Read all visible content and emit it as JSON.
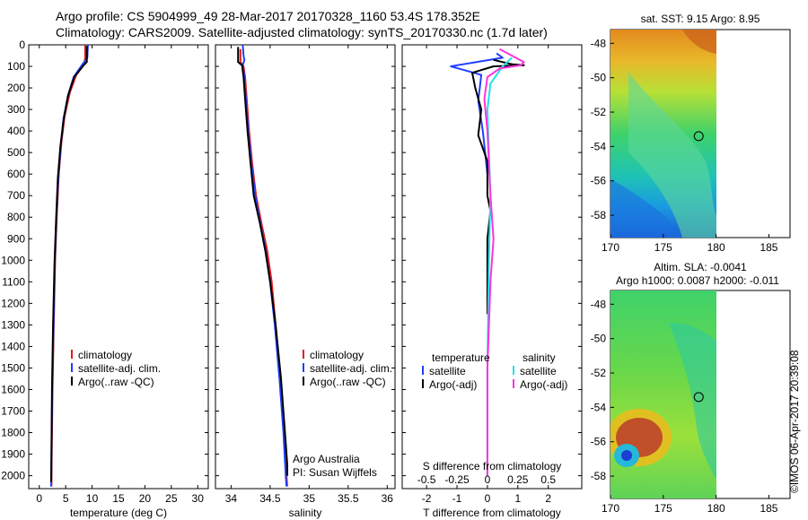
{
  "header": {
    "title_line1": "Argo profile: CS 5904999_49 28-Mar-2017 20170328_1160 53.4S 178.352E",
    "title_line2": "Climatology: CARS2009. Satellite-adjusted climatology: synTS_20170330.nc (1.7d later)"
  },
  "colors": {
    "climatology": "#e31a1c",
    "satellite": "#1f3fff",
    "argo": "#000000",
    "sal_satellite": "#22e0e8",
    "sal_argo": "#ff33dd"
  },
  "chart_data": [
    {
      "type": "line",
      "xlabel": "temperature (deg C)",
      "xlim": [
        -2,
        32
      ],
      "xticks": [
        0,
        5,
        10,
        15,
        20,
        25,
        30
      ],
      "ylim": [
        2060,
        0
      ],
      "yticks": [
        0,
        100,
        200,
        300,
        400,
        500,
        600,
        700,
        800,
        900,
        1000,
        1100,
        1200,
        1300,
        1400,
        1500,
        1600,
        1700,
        1800,
        1900,
        2000
      ],
      "legend": {
        "placement": "lower-center",
        "entries": [
          "climatology",
          "satellite-adj. clim.",
          "Argo(..raw -QC)"
        ]
      },
      "series": [
        {
          "name": "climatology",
          "color": "#e31a1c",
          "points": [
            [
              8.7,
              0
            ],
            [
              8.7,
              60
            ],
            [
              8.5,
              90
            ],
            [
              7.0,
              140
            ],
            [
              5.8,
              220
            ],
            [
              4.8,
              330
            ],
            [
              4.2,
              450
            ],
            [
              3.7,
              600
            ],
            [
              3.3,
              800
            ],
            [
              3.0,
              1000
            ],
            [
              2.75,
              1300
            ],
            [
              2.5,
              1600
            ],
            [
              2.35,
              1900
            ],
            [
              2.3,
              2050
            ]
          ]
        },
        {
          "name": "satellite-adj. clim.",
          "color": "#1f3fff",
          "points": [
            [
              9.2,
              0
            ],
            [
              9.1,
              60
            ],
            [
              8.2,
              90
            ],
            [
              6.5,
              150
            ],
            [
              5.5,
              230
            ],
            [
              4.6,
              340
            ],
            [
              4.1,
              460
            ],
            [
              3.6,
              620
            ],
            [
              3.2,
              820
            ],
            [
              2.95,
              1000
            ],
            [
              2.7,
              1300
            ],
            [
              2.45,
              1600
            ],
            [
              2.3,
              1900
            ],
            [
              2.25,
              2050
            ]
          ]
        },
        {
          "name": "Argo(..raw -QC)",
          "color": "#000000",
          "points": [
            [
              9.0,
              5
            ],
            [
              9.0,
              80
            ],
            [
              8.4,
              95
            ],
            [
              6.6,
              150
            ],
            [
              5.4,
              240
            ],
            [
              4.6,
              350
            ],
            [
              4.0,
              470
            ],
            [
              3.5,
              620
            ],
            [
              3.2,
              800
            ],
            [
              2.9,
              1000
            ],
            [
              2.6,
              1300
            ],
            [
              2.4,
              1600
            ],
            [
              2.3,
              1900
            ],
            [
              2.25,
              2030
            ]
          ]
        }
      ]
    },
    {
      "type": "line",
      "xlabel": "salinity",
      "xlim": [
        33.8,
        36.1
      ],
      "xticks": [
        34,
        34.5,
        35,
        35.5,
        36
      ],
      "ylim": [
        2060,
        0
      ],
      "legend": {
        "placement": "lower-center",
        "entries": [
          "climatology",
          "satellite-adj. clim.",
          "Argo(..raw -QC)"
        ]
      },
      "annotations": [
        "Argo Australia",
        "PI: Susan Wijffels"
      ],
      "series": [
        {
          "name": "climatology",
          "color": "#e31a1c",
          "points": [
            [
              34.12,
              20
            ],
            [
              34.12,
              80
            ],
            [
              34.16,
              100
            ],
            [
              34.18,
              150
            ],
            [
              34.2,
              250
            ],
            [
              34.23,
              400
            ],
            [
              34.27,
              550
            ],
            [
              34.32,
              700
            ],
            [
              34.39,
              830
            ],
            [
              34.46,
              950
            ],
            [
              34.52,
              1100
            ],
            [
              34.57,
              1300
            ],
            [
              34.63,
              1550
            ],
            [
              34.68,
              1800
            ],
            [
              34.71,
              2000
            ],
            [
              34.72,
              2050
            ]
          ]
        },
        {
          "name": "satellite-adj. clim.",
          "color": "#1f3fff",
          "points": [
            [
              34.15,
              0
            ],
            [
              34.16,
              50
            ],
            [
              34.17,
              70
            ],
            [
              34.15,
              95
            ],
            [
              34.17,
              150
            ],
            [
              34.19,
              250
            ],
            [
              34.22,
              400
            ],
            [
              34.26,
              550
            ],
            [
              34.31,
              700
            ],
            [
              34.37,
              820
            ],
            [
              34.44,
              950
            ],
            [
              34.5,
              1100
            ],
            [
              34.56,
              1300
            ],
            [
              34.62,
              1550
            ],
            [
              34.67,
              1800
            ],
            [
              34.7,
              2000
            ],
            [
              34.71,
              2050
            ]
          ]
        },
        {
          "name": "Argo(..raw -QC)",
          "color": "#000000",
          "points": [
            [
              34.09,
              10
            ],
            [
              34.09,
              80
            ],
            [
              34.14,
              95
            ],
            [
              34.16,
              150
            ],
            [
              34.18,
              250
            ],
            [
              34.21,
              400
            ],
            [
              34.25,
              550
            ],
            [
              34.29,
              700
            ],
            [
              34.37,
              830
            ],
            [
              34.44,
              960
            ],
            [
              34.5,
              1100
            ],
            [
              34.57,
              1300
            ],
            [
              34.64,
              1550
            ],
            [
              34.69,
              1800
            ],
            [
              34.72,
              1950
            ],
            [
              34.72,
              2000
            ]
          ]
        }
      ]
    },
    {
      "type": "line",
      "xlabel": "T difference from climatology",
      "xlabel_top": "S difference from climatology",
      "xlim": [
        -2.8,
        3.1
      ],
      "xticks": [
        -2,
        -1,
        0,
        1,
        2
      ],
      "xticks_top": [
        "-0.5",
        "-0.25",
        "0",
        "0.25",
        "0.5"
      ],
      "xticks_top_pos": [
        -2,
        -1,
        0,
        1,
        2
      ],
      "ylim": [
        2060,
        0
      ],
      "legend": {
        "placement": "lower-center",
        "entries": [
          "temperature",
          "satellite",
          "Argo(-adj)",
          "salinity",
          "satellite",
          "Argo(-adj)"
        ]
      },
      "series": [
        {
          "name": "temperature satellite",
          "color": "#1f3fff",
          "points": [
            [
              0.3,
              40
            ],
            [
              0.5,
              60
            ],
            [
              -1.2,
              100
            ],
            [
              -0.2,
              140
            ],
            [
              -0.3,
              260
            ],
            [
              -0.15,
              400
            ],
            [
              0,
              600
            ]
          ]
        },
        {
          "name": "temperature Argo(-adj)",
          "color": "#000000",
          "points": [
            [
              0.2,
              70
            ],
            [
              0.8,
              90
            ],
            [
              1.2,
              95
            ],
            [
              0.2,
              100
            ],
            [
              -0.5,
              130
            ],
            [
              -0.4,
              200
            ],
            [
              -0.2,
              300
            ],
            [
              -0.3,
              420
            ],
            [
              0.0,
              540
            ],
            [
              0.0,
              700
            ],
            [
              0.1,
              770
            ],
            [
              0.0,
              900
            ],
            [
              0.0,
              1100
            ],
            [
              0.0,
              1250
            ]
          ]
        },
        {
          "name": "salinity satellite",
          "color": "#22e0e8",
          "points": [
            [
              0.8,
              60
            ],
            [
              0.5,
              100
            ],
            [
              0.1,
              180
            ],
            [
              0.0,
              300
            ],
            [
              0.05,
              500
            ],
            [
              0.1,
              700
            ],
            [
              0.05,
              1000
            ],
            [
              0.0,
              1500
            ],
            [
              0.0,
              2000
            ]
          ]
        },
        {
          "name": "salinity Argo(-adj)",
          "color": "#ff33dd",
          "points": [
            [
              0.4,
              20
            ],
            [
              1.2,
              80
            ],
            [
              1.1,
              95
            ],
            [
              0.4,
              110
            ],
            [
              0.0,
              150
            ],
            [
              -0.1,
              250
            ],
            [
              0.0,
              400
            ],
            [
              0.1,
              700
            ],
            [
              0.2,
              900
            ],
            [
              0.1,
              1100
            ],
            [
              0.0,
              1500
            ],
            [
              0.0,
              2000
            ]
          ]
        }
      ]
    },
    {
      "type": "heatmap",
      "title": "sat. SST: 9.15  Argo: 8.95",
      "xlim": [
        170,
        187
      ],
      "xticks": [
        170,
        175,
        180,
        185
      ],
      "ylim": [
        -59.3,
        -47.2
      ],
      "yticks": [
        -48,
        -50,
        -52,
        -54,
        -56,
        -58
      ],
      "marker": {
        "lon": 178.352,
        "lat": -53.4
      }
    },
    {
      "type": "heatmap",
      "title": "Altim. SLA: -0.0041",
      "subtitle": "Argo h1000: 0.0087  h2000: -0.011",
      "xlim": [
        170,
        187
      ],
      "xticks": [
        170,
        175,
        180,
        185
      ],
      "ylim": [
        -59.3,
        -47.2
      ],
      "yticks": [
        -48,
        -50,
        -52,
        -54,
        -56,
        -58
      ],
      "marker": {
        "lon": 178.352,
        "lat": -53.4
      }
    }
  ],
  "credit": "©IMOS 06-Apr-2017 20:39:08"
}
